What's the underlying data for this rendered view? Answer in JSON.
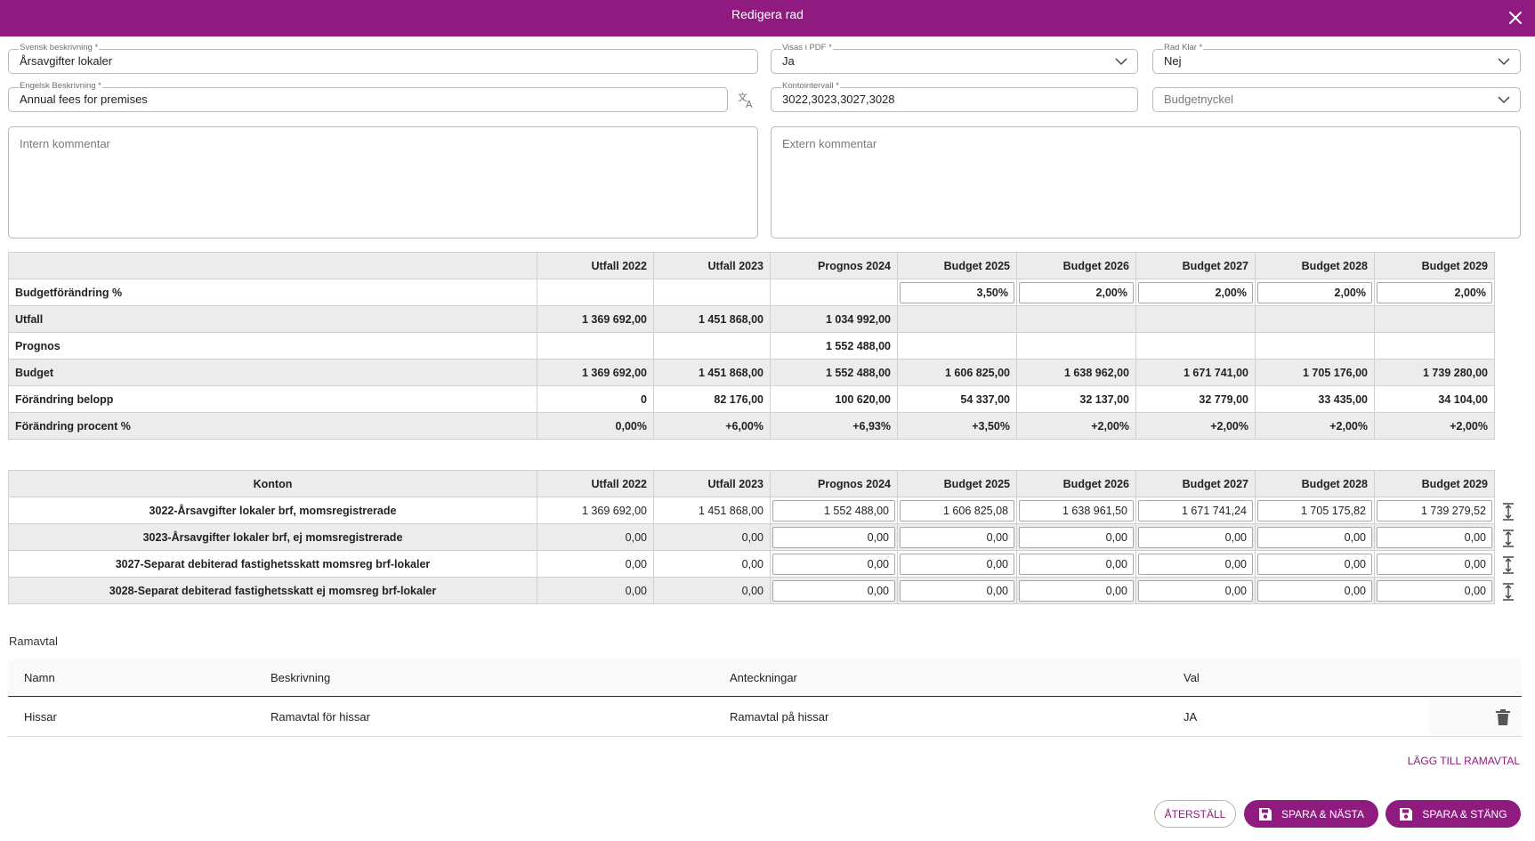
{
  "dialog": {
    "title": "Redigera rad"
  },
  "form": {
    "svensk": {
      "label": "Svensk beskrivning *",
      "value": "Årsavgifter lokaler"
    },
    "visas": {
      "label": "Visas i PDF *",
      "value": "Ja"
    },
    "radklar": {
      "label": "Rad Klar *",
      "value": "Nej"
    },
    "engelsk": {
      "label": "Engelsk Beskrivning *",
      "value": "Annual fees for premises"
    },
    "konto": {
      "label": "Kontointervall *",
      "value": "3022,3023,3027,3028"
    },
    "budgetnyckel": {
      "placeholder": "Budgetnyckel"
    },
    "intern": {
      "placeholder": "Intern kommentar"
    },
    "extern": {
      "placeholder": "Extern kommentar"
    }
  },
  "summary": {
    "headers": [
      "",
      "Utfall 2022",
      "Utfall 2023",
      "Prognos 2024",
      "Budget 2025",
      "Budget 2026",
      "Budget 2027",
      "Budget 2028",
      "Budget 2029"
    ],
    "rows": [
      {
        "label": "Budgetförändring %",
        "cells": [
          "",
          "",
          "",
          "3,50%",
          "2,00%",
          "2,00%",
          "2,00%",
          "2,00%"
        ]
      },
      {
        "label": "Utfall",
        "cells": [
          "1 369 692,00",
          "1 451 868,00",
          "1 034 992,00",
          "",
          "",
          "",
          "",
          ""
        ]
      },
      {
        "label": "Prognos",
        "cells": [
          "",
          "",
          "1 552 488,00",
          "",
          "",
          "",
          "",
          ""
        ]
      },
      {
        "label": "Budget",
        "cells": [
          "1 369 692,00",
          "1 451 868,00",
          "1 552 488,00",
          "1 606 825,00",
          "1 638 962,00",
          "1 671 741,00",
          "1 705 176,00",
          "1 739 280,00"
        ]
      },
      {
        "label": "Förändring belopp",
        "cells": [
          "0",
          "82 176,00",
          "100 620,00",
          "54 337,00",
          "32 137,00",
          "32 779,00",
          "33 435,00",
          "34 104,00"
        ]
      },
      {
        "label": "Förändring procent %",
        "cells": [
          "0,00%",
          "+6,00%",
          "+6,93%",
          "+3,50%",
          "+2,00%",
          "+2,00%",
          "+2,00%",
          "+2,00%"
        ]
      }
    ]
  },
  "konton": {
    "headers": [
      "Konton",
      "Utfall 2022",
      "Utfall 2023",
      "Prognos 2024",
      "Budget 2025",
      "Budget 2026",
      "Budget 2027",
      "Budget 2028",
      "Budget 2029"
    ],
    "rows": [
      {
        "name": "3022-Årsavgifter lokaler brf, momsregistrerade",
        "cells": [
          "1 369 692,00",
          "1 451 868,00",
          "1 552 488,00",
          "1 606 825,08",
          "1 638 961,50",
          "1 671 741,24",
          "1 705 175,82",
          "1 739 279,52"
        ]
      },
      {
        "name": "3023-Årsavgifter lokaler brf, ej momsregistrerade",
        "cells": [
          "0,00",
          "0,00",
          "0,00",
          "0,00",
          "0,00",
          "0,00",
          "0,00",
          "0,00"
        ]
      },
      {
        "name": "3027-Separat debiterad fastighetsskatt momsreg brf-lokaler",
        "cells": [
          "0,00",
          "0,00",
          "0,00",
          "0,00",
          "0,00",
          "0,00",
          "0,00",
          "0,00"
        ]
      },
      {
        "name": "3028-Separat debiterad fastighetsskatt ej momsreg brf-lokaler",
        "cells": [
          "0,00",
          "0,00",
          "0,00",
          "0,00",
          "0,00",
          "0,00",
          "0,00",
          "0,00"
        ]
      }
    ]
  },
  "ramavtal": {
    "title": "Ramavtal",
    "headers": {
      "namn": "Namn",
      "beskrivning": "Beskrivning",
      "anteckningar": "Anteckningar",
      "val": "Val"
    },
    "rows": [
      {
        "namn": "Hissar",
        "beskrivning": "Ramavtal för hissar",
        "anteckningar": "Ramavtal på hissar",
        "val": "JA"
      }
    ],
    "add_label": "LÄGG TILL RAMAVTAL"
  },
  "actions": {
    "reset": "ÅTERSTÄLL",
    "save_next": "SPARA & NÄSTA",
    "save_close": "SPARA & STÄNG"
  },
  "colors": {
    "accent": "#8f1a80",
    "header_bg": "#ececec"
  }
}
